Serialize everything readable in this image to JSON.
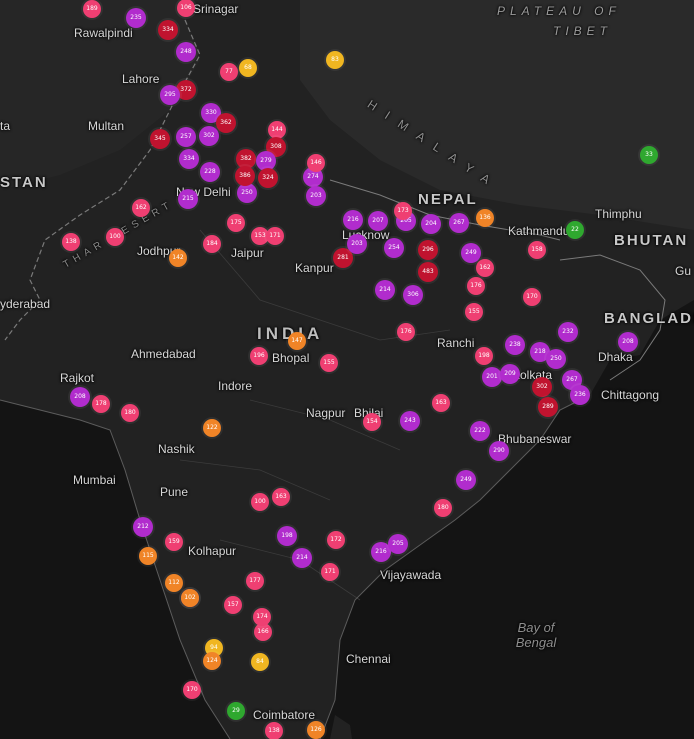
{
  "colors": {
    "background": "#161616",
    "land": "#232323",
    "border": "#7a7a7a",
    "good": "#2fa82f",
    "satisfactory": "#b9c41e",
    "moderate": "#f0b621",
    "poor": "#f08427",
    "very_poor": "#ef3f72",
    "severe": "#b12ccd",
    "hazardous": "#c0132f"
  },
  "labels": [
    {
      "id": "srinagar",
      "text": "Srinagar",
      "cls": "small"
    },
    {
      "id": "rawalpindi",
      "text": "Rawalpindi",
      "cls": "small"
    },
    {
      "id": "lahore",
      "text": "Lahore",
      "cls": "small"
    },
    {
      "id": "multan",
      "text": "Multan",
      "cls": "small"
    },
    {
      "id": "new-delhi",
      "text": "New Delhi",
      "cls": "small"
    },
    {
      "id": "jaipur",
      "text": "Jaipur",
      "cls": "small"
    },
    {
      "id": "jodhpur",
      "text": "Jodhpur",
      "cls": "small"
    },
    {
      "id": "kanpur",
      "text": "Kanpur",
      "cls": "small"
    },
    {
      "id": "lucknow",
      "text": "Lucknow",
      "cls": "small"
    },
    {
      "id": "kathmandu",
      "text": "Kathmandu",
      "cls": "small"
    },
    {
      "id": "thimphu",
      "text": "Thimphu",
      "cls": "small"
    },
    {
      "id": "hyderabad-pk",
      "text": "yderabad",
      "cls": "small"
    },
    {
      "id": "ahmedabad",
      "text": "Ahmedabad",
      "cls": "small"
    },
    {
      "id": "bhopal",
      "text": "Bhopal",
      "cls": "small"
    },
    {
      "id": "indore",
      "text": "Indore",
      "cls": "small"
    },
    {
      "id": "ranchi",
      "text": "Ranchi",
      "cls": "small"
    },
    {
      "id": "kolkata",
      "text": "Kolkata",
      "cls": "small"
    },
    {
      "id": "dhaka",
      "text": "Dhaka",
      "cls": "small"
    },
    {
      "id": "chittagong",
      "text": "Chittagong",
      "cls": "small"
    },
    {
      "id": "rajkot",
      "text": "Rajkot",
      "cls": "small"
    },
    {
      "id": "nagpur",
      "text": "Nagpur",
      "cls": "small"
    },
    {
      "id": "bhilai",
      "text": "Bhilai",
      "cls": "small"
    },
    {
      "id": "bhubaneswar",
      "text": "Bhubaneswar",
      "cls": "small"
    },
    {
      "id": "nashik",
      "text": "Nashik",
      "cls": "small"
    },
    {
      "id": "mumbai",
      "text": "Mumbai",
      "cls": "small"
    },
    {
      "id": "pune",
      "text": "Pune",
      "cls": "small"
    },
    {
      "id": "kolhapur",
      "text": "Kolhapur",
      "cls": "small"
    },
    {
      "id": "vijayawada",
      "text": "Vijayawada",
      "cls": "small"
    },
    {
      "id": "chennai",
      "text": "Chennai",
      "cls": "small"
    },
    {
      "id": "coimbatore",
      "text": "Coimbatore",
      "cls": "small"
    },
    {
      "id": "gu",
      "text": "Gu",
      "cls": "small"
    },
    {
      "id": "ta",
      "text": "ta",
      "cls": "small"
    },
    {
      "id": "india",
      "text": "INDIA",
      "cls": "india"
    },
    {
      "id": "pakistan",
      "text": "STAN",
      "cls": "country"
    },
    {
      "id": "nepal",
      "text": "NEPAL",
      "cls": "country"
    },
    {
      "id": "bhutan",
      "text": "BHUTAN",
      "cls": "country"
    },
    {
      "id": "bangladesh",
      "text": "BANGLADESH",
      "cls": "country"
    },
    {
      "id": "plateau",
      "text": "PLATEAU OF",
      "cls": "region"
    },
    {
      "id": "tibet",
      "text": "TIBET",
      "cls": "region"
    },
    {
      "id": "himalaya",
      "text": "HIMALAYA",
      "cls": "himalaya"
    },
    {
      "id": "thar",
      "text": "THAR DESERT",
      "cls": "desert"
    },
    {
      "id": "bay",
      "text": "Bay of Bengal",
      "cls": "water"
    }
  ],
  "markers": [
    {
      "v": "189",
      "c": "very_poor"
    },
    {
      "v": "235",
      "c": "severe"
    },
    {
      "v": "106",
      "c": "very_poor"
    },
    {
      "v": "334",
      "c": "hazardous"
    },
    {
      "v": "248",
      "c": "severe"
    },
    {
      "v": "77",
      "c": "very_poor"
    },
    {
      "v": "68",
      "c": "moderate"
    },
    {
      "v": "83",
      "c": "moderate"
    },
    {
      "v": "372",
      "c": "hazardous"
    },
    {
      "v": "295",
      "c": "severe"
    },
    {
      "v": "330",
      "c": "severe"
    },
    {
      "v": "362",
      "c": "hazardous"
    },
    {
      "v": "257",
      "c": "severe"
    },
    {
      "v": "302",
      "c": "severe"
    },
    {
      "v": "382",
      "c": "hazardous"
    },
    {
      "v": "144",
      "c": "very_poor"
    },
    {
      "v": "308",
      "c": "hazardous"
    },
    {
      "v": "345",
      "c": "hazardous"
    },
    {
      "v": "334",
      "c": "severe"
    },
    {
      "v": "228",
      "c": "severe"
    },
    {
      "v": "250",
      "c": "severe"
    },
    {
      "v": "279",
      "c": "severe"
    },
    {
      "v": "324",
      "c": "hazardous"
    },
    {
      "v": "386",
      "c": "hazardous"
    },
    {
      "v": "274",
      "c": "severe"
    },
    {
      "v": "146",
      "c": "very_poor"
    },
    {
      "v": "203",
      "c": "severe"
    },
    {
      "v": "215",
      "c": "severe"
    },
    {
      "v": "162",
      "c": "very_poor"
    },
    {
      "v": "138",
      "c": "very_poor"
    },
    {
      "v": "100",
      "c": "very_poor"
    },
    {
      "v": "142",
      "c": "poor"
    },
    {
      "v": "184",
      "c": "very_poor"
    },
    {
      "v": "175",
      "c": "very_poor"
    },
    {
      "v": "153",
      "c": "very_poor"
    },
    {
      "v": "171",
      "c": "very_poor"
    },
    {
      "v": "216",
      "c": "severe"
    },
    {
      "v": "207",
      "c": "severe"
    },
    {
      "v": "205",
      "c": "severe"
    },
    {
      "v": "173",
      "c": "very_poor"
    },
    {
      "v": "204",
      "c": "severe"
    },
    {
      "v": "267",
      "c": "severe"
    },
    {
      "v": "136",
      "c": "poor"
    },
    {
      "v": "281",
      "c": "hazardous"
    },
    {
      "v": "203",
      "c": "severe"
    },
    {
      "v": "254",
      "c": "severe"
    },
    {
      "v": "296",
      "c": "hazardous"
    },
    {
      "v": "249",
      "c": "severe"
    },
    {
      "v": "483",
      "c": "hazardous"
    },
    {
      "v": "214",
      "c": "severe"
    },
    {
      "v": "306",
      "c": "severe"
    },
    {
      "v": "158",
      "c": "very_poor"
    },
    {
      "v": "162",
      "c": "very_poor"
    },
    {
      "v": "176",
      "c": "very_poor"
    },
    {
      "v": "155",
      "c": "very_poor"
    },
    {
      "v": "170",
      "c": "very_poor"
    },
    {
      "v": "232",
      "c": "severe"
    },
    {
      "v": "208",
      "c": "severe"
    },
    {
      "v": "238",
      "c": "severe"
    },
    {
      "v": "218",
      "c": "severe"
    },
    {
      "v": "250",
      "c": "severe"
    },
    {
      "v": "267",
      "c": "severe"
    },
    {
      "v": "302",
      "c": "hazardous"
    },
    {
      "v": "289",
      "c": "hazardous"
    },
    {
      "v": "201",
      "c": "severe"
    },
    {
      "v": "209",
      "c": "severe"
    },
    {
      "v": "198",
      "c": "very_poor"
    },
    {
      "v": "163",
      "c": "very_poor"
    },
    {
      "v": "222",
      "c": "severe"
    },
    {
      "v": "290",
      "c": "severe"
    },
    {
      "v": "249",
      "c": "severe"
    },
    {
      "v": "180",
      "c": "very_poor"
    },
    {
      "v": "196",
      "c": "very_poor"
    },
    {
      "v": "147",
      "c": "poor"
    },
    {
      "v": "155",
      "c": "very_poor"
    },
    {
      "v": "176",
      "c": "very_poor"
    },
    {
      "v": "243",
      "c": "severe"
    },
    {
      "v": "154",
      "c": "very_poor"
    },
    {
      "v": "208",
      "c": "severe"
    },
    {
      "v": "122",
      "c": "poor"
    },
    {
      "v": "212",
      "c": "severe"
    },
    {
      "v": "198",
      "c": "severe"
    },
    {
      "v": "214",
      "c": "severe"
    },
    {
      "v": "171",
      "c": "very_poor"
    },
    {
      "v": "172",
      "c": "very_poor"
    },
    {
      "v": "216",
      "c": "severe"
    },
    {
      "v": "205",
      "c": "severe"
    },
    {
      "v": "163",
      "c": "very_poor"
    },
    {
      "v": "157",
      "c": "very_poor"
    },
    {
      "v": "187",
      "c": "very_poor"
    },
    {
      "v": "177",
      "c": "very_poor"
    },
    {
      "v": "159",
      "c": "very_poor"
    },
    {
      "v": "100",
      "c": "very_poor"
    },
    {
      "v": "180",
      "c": "very_poor"
    },
    {
      "v": "178",
      "c": "very_poor"
    },
    {
      "v": "166",
      "c": "very_poor"
    },
    {
      "v": "174",
      "c": "very_poor"
    },
    {
      "v": "115",
      "c": "poor"
    },
    {
      "v": "112",
      "c": "poor"
    },
    {
      "v": "102",
      "c": "poor"
    },
    {
      "v": "94",
      "c": "moderate"
    },
    {
      "v": "84",
      "c": "moderate"
    },
    {
      "v": "124",
      "c": "poor"
    },
    {
      "v": "170",
      "c": "very_poor"
    },
    {
      "v": "29",
      "c": "good"
    },
    {
      "v": "33",
      "c": "good"
    },
    {
      "v": "22",
      "c": "good"
    },
    {
      "v": "126",
      "c": "poor"
    },
    {
      "v": "138",
      "c": "very_poor"
    },
    {
      "v": "236",
      "c": "severe"
    }
  ]
}
